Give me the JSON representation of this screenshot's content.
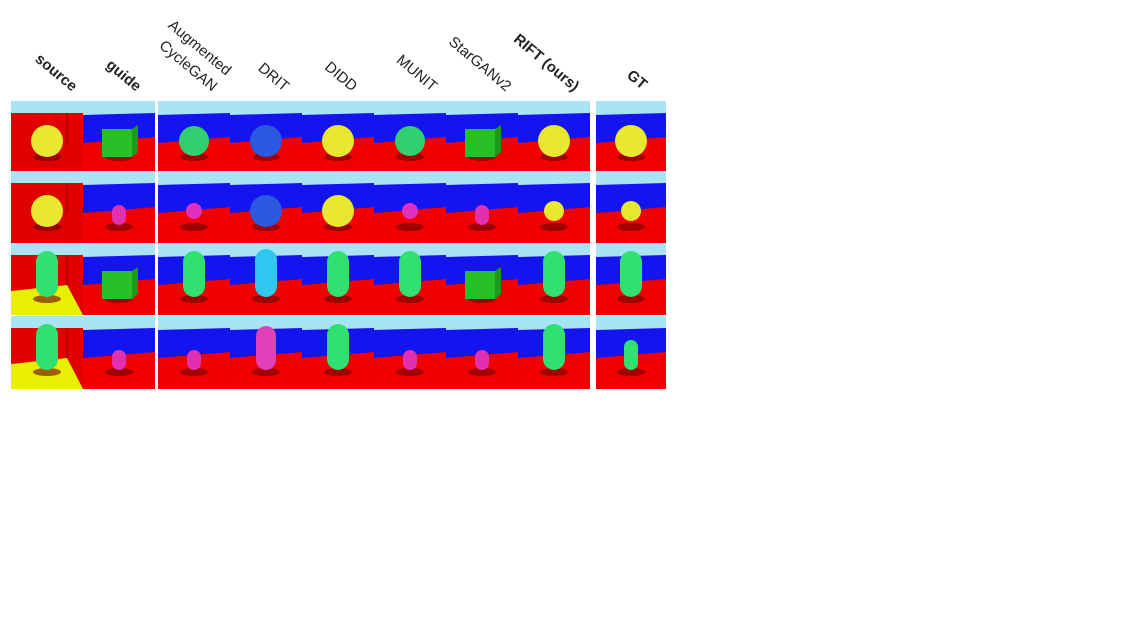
{
  "figure": {
    "columns": [
      "source",
      "guide",
      [
        "Augmented",
        "CycleGAN"
      ],
      "DRIT",
      "DIDD",
      "MUNIT",
      "StarGANv2",
      "RIFT (ours)",
      "GT"
    ]
  }
}
